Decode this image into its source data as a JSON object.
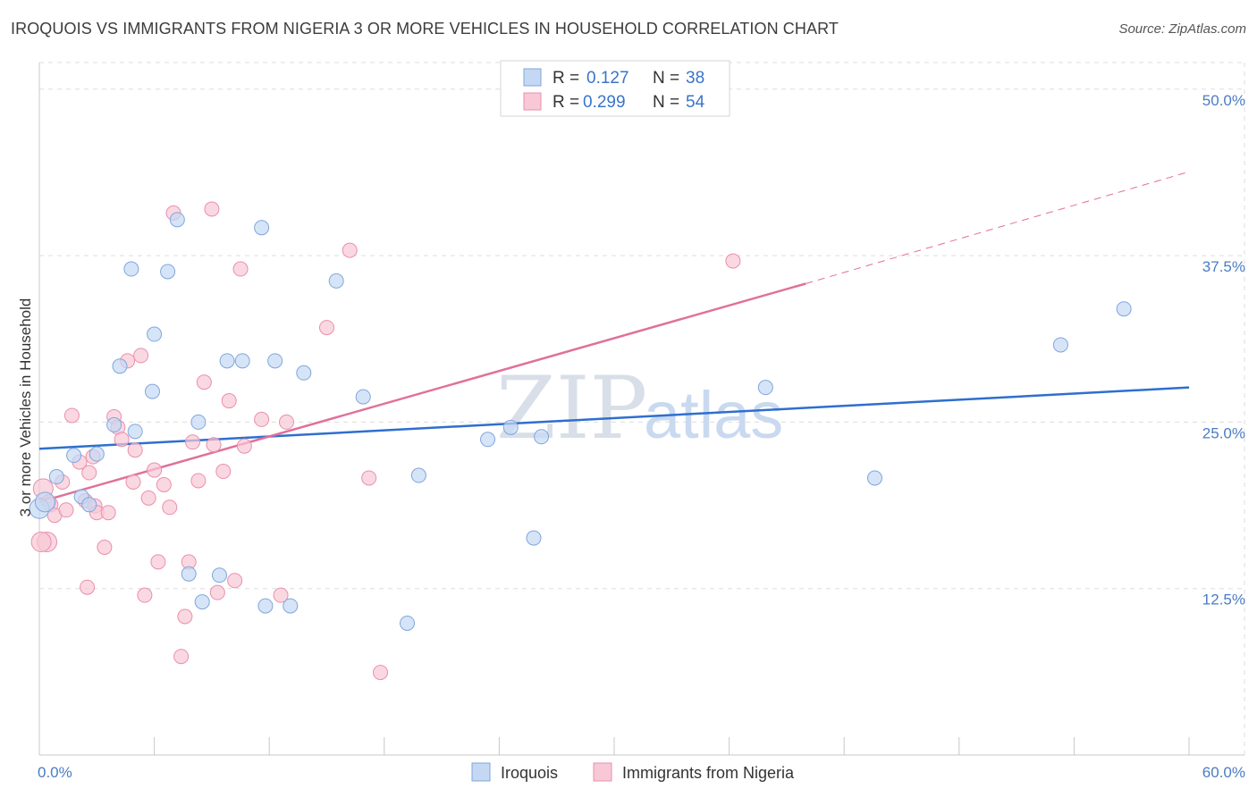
{
  "title": "IROQUOIS VS IMMIGRANTS FROM NIGERIA 3 OR MORE VEHICLES IN HOUSEHOLD CORRELATION CHART",
  "source": "Source: ZipAtlas.com",
  "watermark": {
    "zip": "ZIP",
    "atlas": "atlas"
  },
  "colors": {
    "iroquois_fill": "#c5d8f3",
    "iroquois_stroke": "#7fa6dd",
    "iroquois_line": "#2e6fce",
    "nigeria_fill": "#f8c8d6",
    "nigeria_stroke": "#ea8fac",
    "nigeria_line": "#e0709a",
    "grid": "#dddddd",
    "tick_label": "#4a7cc4"
  },
  "legend": {
    "rows": [
      {
        "r_label": "R =",
        "r_value": "0.127",
        "n_label": "N =",
        "n_value": "38"
      },
      {
        "r_label": "R =",
        "r_value": "0.299",
        "n_label": "N =",
        "n_value": "54"
      }
    ]
  },
  "chart_data": {
    "type": "scatter",
    "title": "IROQUOIS VS IMMIGRANTS FROM NIGERIA 3 OR MORE VEHICLES IN HOUSEHOLD CORRELATION CHART",
    "xlabel": "",
    "ylabel": "3 or more Vehicles in Household",
    "xlim": [
      0,
      60
    ],
    "ylim": [
      0,
      52
    ],
    "x_tick_labels": [
      "0.0%",
      "60.0%"
    ],
    "y_ticks": [
      12.5,
      25.0,
      37.5,
      50.0
    ],
    "y_tick_labels": [
      "12.5%",
      "25.0%",
      "37.5%",
      "50.0%"
    ],
    "grid": true,
    "legend_position": "top-center",
    "series": [
      {
        "name": "Iroquois",
        "points": [
          [
            0.0,
            18.5
          ],
          [
            0.3,
            19.0
          ],
          [
            0.9,
            20.9
          ],
          [
            1.8,
            22.5
          ],
          [
            2.2,
            19.4
          ],
          [
            2.6,
            18.8
          ],
          [
            3.0,
            22.6
          ],
          [
            3.9,
            24.8
          ],
          [
            4.2,
            29.2
          ],
          [
            4.8,
            36.5
          ],
          [
            5.0,
            24.3
          ],
          [
            5.9,
            27.3
          ],
          [
            6.0,
            31.6
          ],
          [
            6.7,
            36.3
          ],
          [
            7.2,
            40.2
          ],
          [
            7.8,
            13.6
          ],
          [
            8.3,
            25.0
          ],
          [
            8.5,
            11.5
          ],
          [
            9.4,
            13.5
          ],
          [
            9.8,
            29.6
          ],
          [
            10.6,
            29.6
          ],
          [
            11.6,
            39.6
          ],
          [
            11.8,
            11.2
          ],
          [
            12.3,
            29.6
          ],
          [
            13.1,
            11.2
          ],
          [
            13.8,
            28.7
          ],
          [
            15.5,
            35.6
          ],
          [
            16.9,
            26.9
          ],
          [
            19.2,
            9.9
          ],
          [
            19.8,
            21.0
          ],
          [
            23.4,
            23.7
          ],
          [
            24.6,
            24.6
          ],
          [
            25.8,
            16.3
          ],
          [
            26.2,
            23.9
          ],
          [
            37.9,
            27.6
          ],
          [
            43.6,
            20.8
          ],
          [
            53.3,
            30.8
          ],
          [
            56.6,
            33.5
          ]
        ]
      },
      {
        "name": "Immigrants from Nigeria",
        "points": [
          [
            0.2,
            20.0
          ],
          [
            0.4,
            16.0
          ],
          [
            0.5,
            19.0
          ],
          [
            0.6,
            18.8
          ],
          [
            0.8,
            18.0
          ],
          [
            1.2,
            20.5
          ],
          [
            1.4,
            18.4
          ],
          [
            1.7,
            25.5
          ],
          [
            2.1,
            22.0
          ],
          [
            2.4,
            19.1
          ],
          [
            2.5,
            12.6
          ],
          [
            2.6,
            21.2
          ],
          [
            2.8,
            22.4
          ],
          [
            2.9,
            18.7
          ],
          [
            3.0,
            18.2
          ],
          [
            3.4,
            15.6
          ],
          [
            3.6,
            18.2
          ],
          [
            3.9,
            25.4
          ],
          [
            4.1,
            24.6
          ],
          [
            4.3,
            23.7
          ],
          [
            4.6,
            29.6
          ],
          [
            4.9,
            20.5
          ],
          [
            5.0,
            22.9
          ],
          [
            5.3,
            30.0
          ],
          [
            5.5,
            12.0
          ],
          [
            5.7,
            19.3
          ],
          [
            6.0,
            21.4
          ],
          [
            6.2,
            14.5
          ],
          [
            6.5,
            20.3
          ],
          [
            6.8,
            18.6
          ],
          [
            7.0,
            40.7
          ],
          [
            7.4,
            7.4
          ],
          [
            7.6,
            10.4
          ],
          [
            7.8,
            14.5
          ],
          [
            8.0,
            23.5
          ],
          [
            8.3,
            20.6
          ],
          [
            8.6,
            28.0
          ],
          [
            9.0,
            41.0
          ],
          [
            9.1,
            23.3
          ],
          [
            9.3,
            12.2
          ],
          [
            9.6,
            21.3
          ],
          [
            9.9,
            26.6
          ],
          [
            10.2,
            13.1
          ],
          [
            10.5,
            36.5
          ],
          [
            10.7,
            23.2
          ],
          [
            11.6,
            25.2
          ],
          [
            12.6,
            12.0
          ],
          [
            12.9,
            25.0
          ],
          [
            15.0,
            32.1
          ],
          [
            16.2,
            37.9
          ],
          [
            17.2,
            20.8
          ],
          [
            17.8,
            6.2
          ],
          [
            36.2,
            37.1
          ],
          [
            0.1,
            16.0
          ]
        ]
      }
    ],
    "trend_lines": [
      {
        "series": "Iroquois",
        "x": [
          0,
          60
        ],
        "y": [
          23.0,
          27.6
        ],
        "style": "solid"
      },
      {
        "series": "Immigrants from Nigeria",
        "x": [
          0,
          40
        ],
        "y": [
          19.0,
          35.4
        ],
        "style": "solid"
      },
      {
        "series": "Immigrants from Nigeria",
        "x": [
          40,
          60
        ],
        "y": [
          35.4,
          43.8
        ],
        "style": "dashed"
      }
    ]
  }
}
